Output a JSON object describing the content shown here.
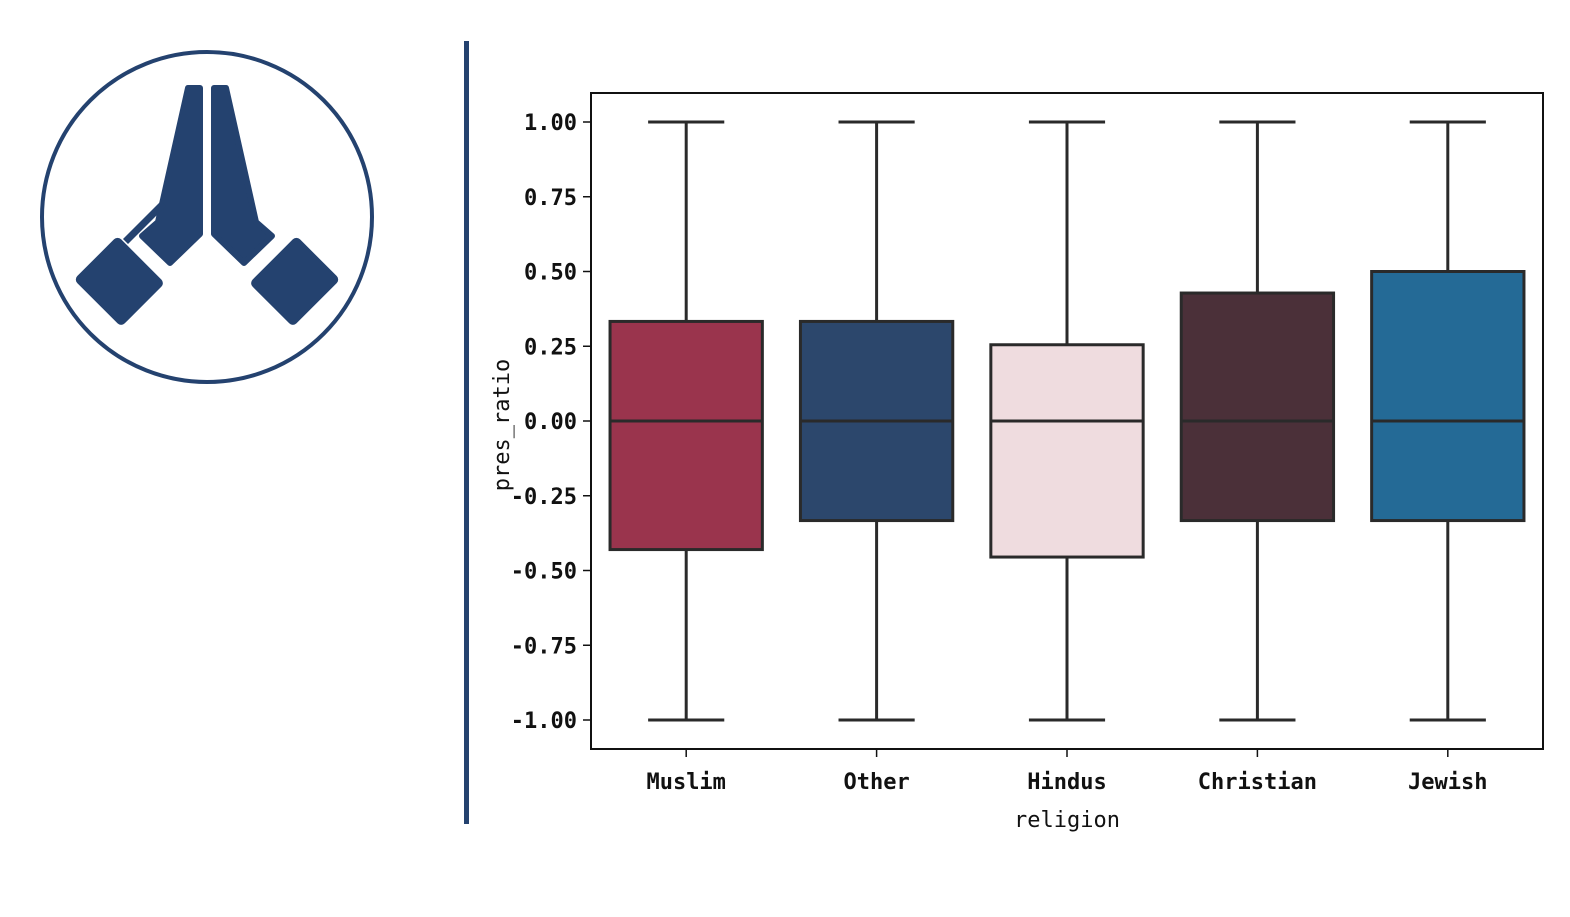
{
  "logo": {
    "icon": "praying-hands-icon",
    "color": "#24426f"
  },
  "divider_color": "#24426f",
  "chart_data": {
    "type": "box",
    "xlabel": "religion",
    "ylabel": "pres_ratio",
    "ylim": [
      -1.1,
      1.1
    ],
    "yticks": [
      1.0,
      0.75,
      0.5,
      0.25,
      0.0,
      -0.25,
      -0.5,
      -0.75,
      -1.0
    ],
    "ytick_labels": [
      "1.00",
      "0.75",
      "0.50",
      "0.25",
      "0.00",
      "-0.25",
      "-0.50",
      "-0.75",
      "-1.00"
    ],
    "grid": false,
    "categories": [
      "Muslim",
      "Other",
      "Hindus",
      "Christian",
      "Jewish"
    ],
    "boxes": [
      {
        "category": "Muslim",
        "min": -1.0,
        "q1": -0.43,
        "median": 0.0,
        "q3": 0.333,
        "max": 1.0,
        "color": "#9a344d"
      },
      {
        "category": "Other",
        "min": -1.0,
        "q1": -0.333,
        "median": 0.0,
        "q3": 0.333,
        "max": 1.0,
        "color": "#2c476c"
      },
      {
        "category": "Hindus",
        "min": -1.0,
        "q1": -0.455,
        "median": 0.0,
        "q3": 0.255,
        "max": 1.0,
        "color": "#efdcdf"
      },
      {
        "category": "Christian",
        "min": -1.0,
        "q1": -0.333,
        "median": 0.0,
        "q3": 0.428,
        "max": 1.0,
        "color": "#4b3039"
      },
      {
        "category": "Jewish",
        "min": -1.0,
        "q1": -0.333,
        "median": 0.0,
        "q3": 0.5,
        "max": 1.0,
        "color": "#246a96"
      }
    ]
  }
}
